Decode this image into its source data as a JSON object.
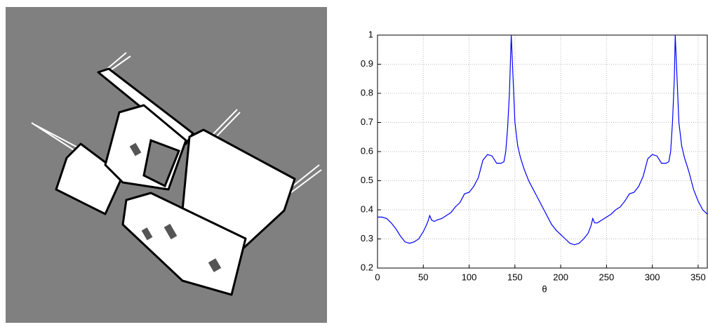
{
  "chart_data": {
    "type": "line",
    "xlabel": "θ",
    "x": [
      0,
      5,
      10,
      15,
      20,
      25,
      30,
      35,
      40,
      45,
      50,
      53,
      55,
      57,
      59,
      62,
      65,
      70,
      75,
      80,
      85,
      90,
      95,
      100,
      105,
      110,
      115,
      120,
      125,
      130,
      135,
      138,
      140,
      142,
      144,
      146,
      148,
      150,
      153,
      156,
      160,
      165,
      170,
      175,
      180,
      185,
      190,
      195,
      200,
      205,
      210,
      215,
      220,
      225,
      230,
      233,
      235,
      237,
      240,
      245,
      250,
      255,
      260,
      265,
      270,
      275,
      280,
      285,
      290,
      295,
      300,
      305,
      310,
      315,
      318,
      320,
      322,
      324,
      325,
      327,
      329,
      332,
      335,
      340,
      345,
      350,
      355,
      360
    ],
    "series": [
      {
        "color": "#0000ff",
        "values": [
          0.375,
          0.375,
          0.37,
          0.355,
          0.335,
          0.31,
          0.29,
          0.285,
          0.29,
          0.3,
          0.325,
          0.345,
          0.36,
          0.38,
          0.365,
          0.36,
          0.365,
          0.37,
          0.38,
          0.39,
          0.41,
          0.425,
          0.455,
          0.46,
          0.48,
          0.51,
          0.57,
          0.59,
          0.585,
          0.56,
          0.56,
          0.565,
          0.6,
          0.68,
          0.8,
          1.0,
          0.85,
          0.7,
          0.62,
          0.58,
          0.54,
          0.5,
          0.47,
          0.44,
          0.41,
          0.38,
          0.35,
          0.33,
          0.315,
          0.3,
          0.285,
          0.28,
          0.285,
          0.3,
          0.32,
          0.345,
          0.37,
          0.355,
          0.355,
          0.365,
          0.375,
          0.385,
          0.4,
          0.41,
          0.43,
          0.455,
          0.46,
          0.48,
          0.515,
          0.575,
          0.59,
          0.585,
          0.56,
          0.56,
          0.565,
          0.6,
          0.7,
          0.85,
          1.0,
          0.85,
          0.7,
          0.62,
          0.58,
          0.53,
          0.47,
          0.43,
          0.4,
          0.385
        ]
      }
    ],
    "xlim": [
      0,
      360
    ],
    "xticks": [
      0,
      50,
      100,
      150,
      200,
      250,
      300,
      350
    ],
    "ylim": [
      0.2,
      1
    ],
    "yticks": [
      0.2,
      0.3,
      0.4,
      0.5,
      0.6,
      0.7,
      0.8,
      0.9,
      1
    ],
    "grid": true
  }
}
